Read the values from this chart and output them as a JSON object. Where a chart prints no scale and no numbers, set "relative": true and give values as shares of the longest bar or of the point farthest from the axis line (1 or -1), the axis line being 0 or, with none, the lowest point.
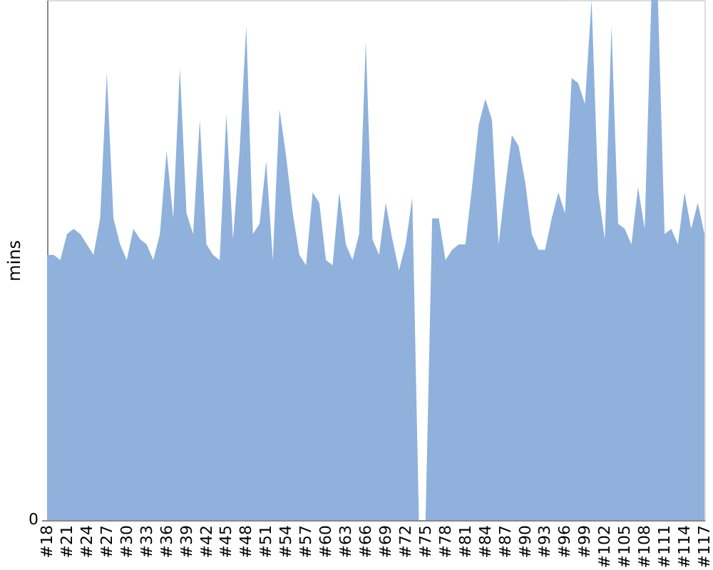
{
  "chart_data": {
    "type": "area",
    "ylabel": "mins",
    "relative": true,
    "annotations": [
      "0"
    ],
    "categories": [
      "#18",
      null,
      null,
      "#21",
      null,
      null,
      "#24",
      null,
      null,
      "#27",
      null,
      null,
      "#30",
      null,
      null,
      "#33",
      null,
      null,
      "#36",
      null,
      null,
      "#39",
      null,
      null,
      "#42",
      null,
      null,
      "#45",
      null,
      null,
      "#48",
      null,
      null,
      "#51",
      null,
      null,
      "#54",
      null,
      null,
      "#57",
      null,
      null,
      "#60",
      null,
      null,
      "#63",
      null,
      null,
      "#66",
      null,
      null,
      "#69",
      null,
      null,
      "#72",
      null,
      null,
      "#75",
      null,
      null,
      "#78",
      null,
      null,
      "#81",
      null,
      null,
      "#84",
      null,
      null,
      "#87",
      null,
      null,
      "#90",
      null,
      null,
      "#93",
      null,
      null,
      "#96",
      null,
      null,
      "#99",
      null,
      null,
      "#102",
      null,
      null,
      "#105",
      null,
      null,
      "#108",
      null,
      null,
      "#111",
      null,
      null,
      "#114",
      null,
      null,
      "#117"
    ],
    "series": [
      {
        "color": "#8fb1dc",
        "values": [
          0.51,
          0.51,
          0.5,
          0.55,
          0.56,
          0.55,
          0.53,
          0.51,
          0.58,
          0.86,
          0.58,
          0.53,
          0.5,
          0.56,
          0.54,
          0.53,
          0.5,
          0.55,
          0.71,
          0.58,
          0.87,
          0.59,
          0.55,
          0.77,
          0.53,
          0.51,
          0.5,
          0.78,
          0.54,
          0.71,
          0.95,
          0.55,
          0.57,
          0.69,
          0.5,
          0.79,
          0.7,
          0.59,
          0.51,
          0.49,
          0.63,
          0.61,
          0.5,
          0.49,
          0.63,
          0.53,
          0.5,
          0.55,
          0.92,
          0.54,
          0.51,
          0.61,
          0.54,
          0.48,
          0.53,
          0.62,
          0,
          0,
          0.58,
          0.58,
          0.5,
          0.52,
          0.53,
          0.53,
          0.64,
          0.76,
          0.81,
          0.77,
          0.53,
          0.64,
          0.74,
          0.72,
          0.65,
          0.55,
          0.52,
          0.52,
          0.58,
          0.63,
          0.59,
          0.85,
          0.84,
          0.8,
          1,
          0.63,
          0.54,
          0.95,
          0.57,
          0.56,
          0.53,
          0.64,
          0.56,
          1,
          1,
          0.55,
          0.56,
          0.53,
          0.63,
          0.56,
          0.61,
          0.55
        ]
      }
    ]
  }
}
